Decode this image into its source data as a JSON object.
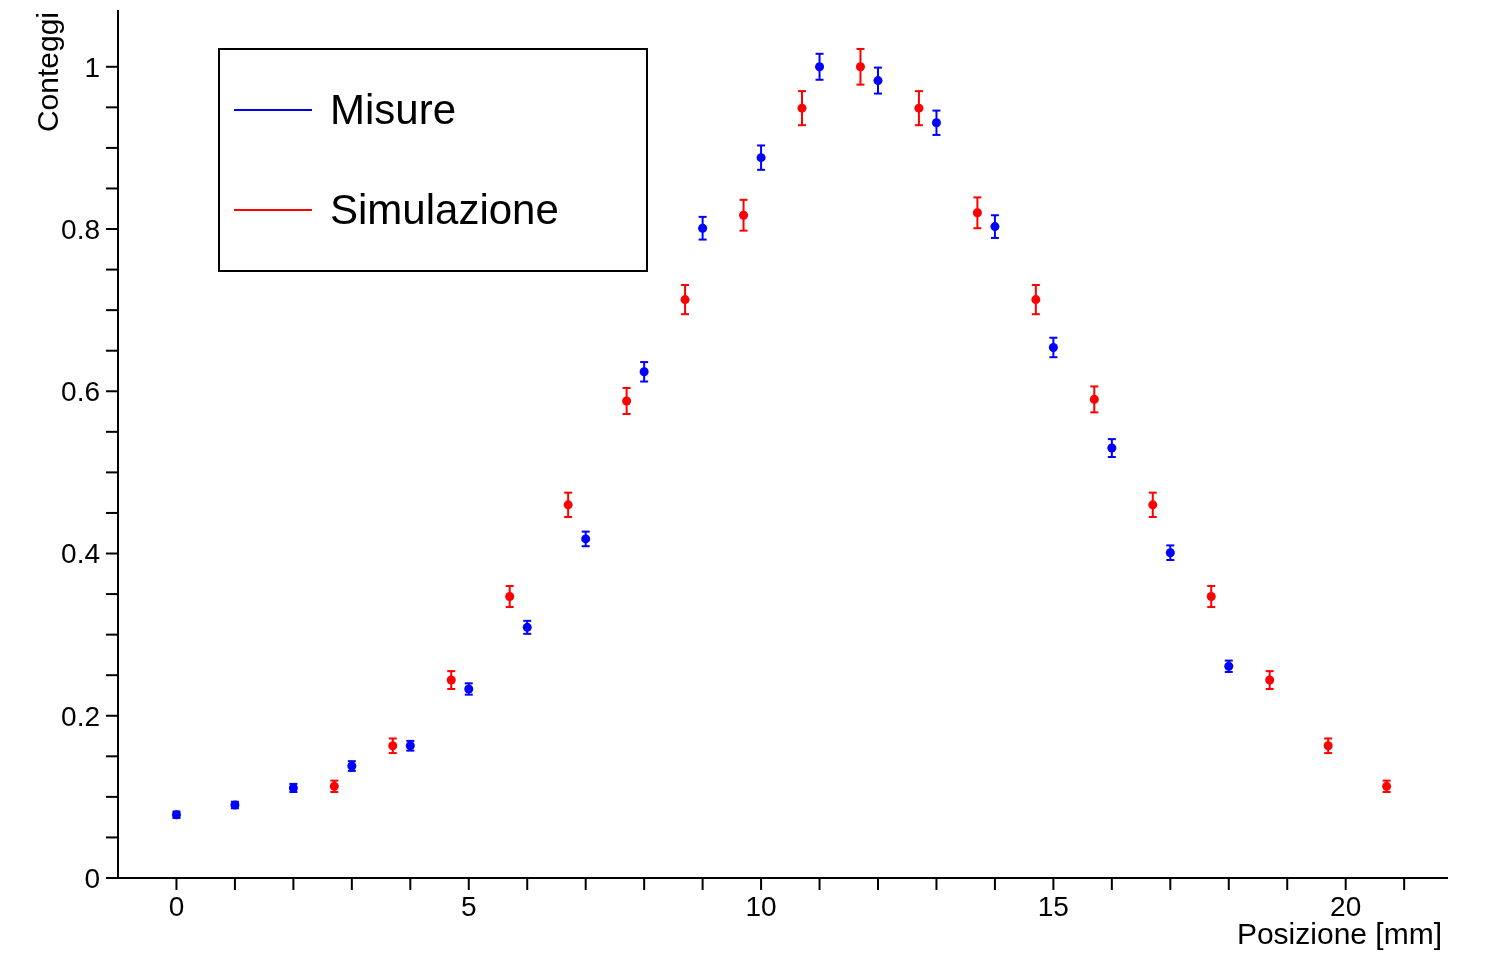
{
  "chart_data": {
    "type": "scatter",
    "xlabel": "Posizione [mm]",
    "ylabel": "Conteggi",
    "xlim": [
      -1,
      21.75
    ],
    "ylim": [
      0,
      1.07
    ],
    "xticks": [
      0,
      {
        "value": 1,
        "label": null
      },
      {
        "value": 2,
        "label": null
      },
      {
        "value": 3,
        "label": null
      },
      {
        "value": 4,
        "label": null
      },
      5,
      {
        "value": 6,
        "label": null
      },
      {
        "value": 7,
        "label": null
      },
      {
        "value": 8,
        "label": null
      },
      {
        "value": 9,
        "label": null
      },
      10,
      {
        "value": 11,
        "label": null
      },
      {
        "value": 12,
        "label": null
      },
      {
        "value": 13,
        "label": null
      },
      {
        "value": 14,
        "label": null
      },
      15,
      {
        "value": 16,
        "label": null
      },
      {
        "value": 17,
        "label": null
      },
      {
        "value": 18,
        "label": null
      },
      {
        "value": 19,
        "label": null
      },
      20,
      {
        "value": 21,
        "label": null
      }
    ],
    "yticks": [
      0,
      {
        "value": 0.05,
        "label": null
      },
      {
        "value": 0.1,
        "label": null
      },
      {
        "value": 0.15,
        "label": null
      },
      0.2,
      {
        "value": 0.25,
        "label": null
      },
      {
        "value": 0.3,
        "label": null
      },
      {
        "value": 0.35,
        "label": null
      },
      0.4,
      {
        "value": 0.45,
        "label": null
      },
      {
        "value": 0.5,
        "label": null
      },
      {
        "value": 0.55,
        "label": null
      },
      0.6,
      {
        "value": 0.65,
        "label": null
      },
      {
        "value": 0.7,
        "label": null
      },
      {
        "value": 0.75,
        "label": null
      },
      0.8,
      {
        "value": 0.85,
        "label": null
      },
      {
        "value": 0.9,
        "label": null
      },
      {
        "value": 0.95,
        "label": null
      },
      1
    ],
    "grid": false,
    "legend": "top left",
    "marker": "circle",
    "series": [
      {
        "name": "Misure",
        "color": "#0000ff",
        "x": [
          0,
          1,
          2,
          3,
          4,
          5,
          6,
          7,
          8,
          9,
          10,
          11,
          12,
          13,
          14,
          15,
          16,
          17,
          18
        ],
        "values": [
          0.078,
          0.09,
          0.111,
          0.138,
          0.163,
          0.233,
          0.309,
          0.418,
          0.624,
          0.801,
          0.888,
          1.0,
          0.983,
          0.931,
          0.803,
          0.654,
          0.53,
          0.401,
          0.261
        ],
        "errors": [
          0.004,
          0.004,
          0.005,
          0.006,
          0.006,
          0.007,
          0.008,
          0.009,
          0.012,
          0.014,
          0.015,
          0.016,
          0.016,
          0.015,
          0.014,
          0.012,
          0.011,
          0.009,
          0.007
        ]
      },
      {
        "name": "Simulazione",
        "color": "#ff0000",
        "x": [
          2.7,
          3.7,
          4.7,
          5.7,
          6.7,
          7.7,
          8.7,
          9.7,
          10.7,
          11.7,
          12.7,
          13.7,
          14.7,
          15.7,
          16.7,
          17.7,
          18.7,
          19.7,
          20.7
        ],
        "values": [
          0.113,
          0.163,
          0.244,
          0.347,
          0.46,
          0.588,
          0.713,
          0.817,
          0.949,
          1.0,
          0.949,
          0.82,
          0.713,
          0.59,
          0.46,
          0.347,
          0.244,
          0.163,
          0.113
        ],
        "errors": [
          0.007,
          0.009,
          0.011,
          0.013,
          0.015,
          0.016,
          0.018,
          0.019,
          0.021,
          0.022,
          0.021,
          0.019,
          0.018,
          0.016,
          0.015,
          0.013,
          0.011,
          0.009,
          0.007
        ]
      }
    ]
  }
}
